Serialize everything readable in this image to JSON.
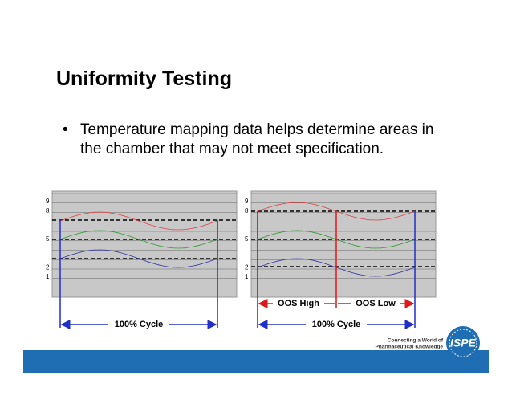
{
  "title": "Uniformity Testing",
  "bullet": "Temperature mapping data helps determine areas in the chamber that may not meet specification.",
  "charts": [
    {
      "yticks": [
        9,
        8,
        5,
        2,
        1
      ],
      "cycle_label": "100% Cycle"
    },
    {
      "yticks": [
        9,
        8,
        5,
        2,
        1
      ],
      "oos_high": "OOS High",
      "oos_low": "OOS Low",
      "cycle_label": "100% Cycle"
    }
  ],
  "footer": {
    "tagline_1": "Connecting a World of",
    "tagline_2": "Pharmaceutical Knowledge",
    "logo": "ISPE"
  }
}
